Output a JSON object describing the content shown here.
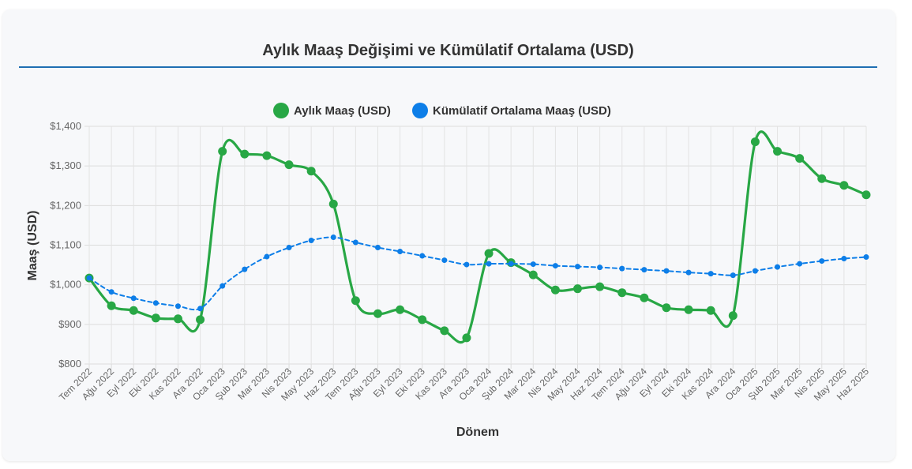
{
  "chart_data": {
    "type": "line",
    "title": "Aylık Maaş Değişimi ve Kümülatif Ortalama (USD)",
    "xlabel": "Dönem",
    "ylabel": "Maaş (USD)",
    "ylim": [
      800,
      1400
    ],
    "yticks": [
      800,
      900,
      1000,
      1100,
      1200,
      1300,
      1400
    ],
    "ytick_labels": [
      "$800",
      "$900",
      "$1,000",
      "$1,100",
      "$1,200",
      "$1,300",
      "$1,400"
    ],
    "grid": true,
    "legend_position": "top-center",
    "categories": [
      "Tem 2022",
      "Ağu 2022",
      "Eyl 2022",
      "Eki 2022",
      "Kas 2022",
      "Ara 2022",
      "Oca 2023",
      "Şub 2023",
      "Mar 2023",
      "Nis 2023",
      "May 2023",
      "Haz 2023",
      "Tem 2023",
      "Ağu 2023",
      "Eyl 2023",
      "Eki 2023",
      "Kas 2023",
      "Ara 2023",
      "Oca 2024",
      "Şub 2024",
      "Mar 2024",
      "Nis 2024",
      "May 2024",
      "Haz 2024",
      "Tem 2024",
      "Ağu 2024",
      "Eyl 2024",
      "Eki 2024",
      "Kas 2024",
      "Ara 2024",
      "Oca 2025",
      "Şub 2025",
      "Mar 2025",
      "Nis 2025",
      "May 2025",
      "Haz 2025"
    ],
    "series": [
      {
        "name": "Aylık Maaş (USD)",
        "color": "#28a745",
        "style": "solid",
        "values": [
          1017,
          947,
          935,
          916,
          914,
          912,
          1337,
          1330,
          1326,
          1303,
          1287,
          1204,
          960,
          927,
          937,
          912,
          884,
          866,
          1079,
          1056,
          1025,
          987,
          990,
          995,
          980,
          967,
          942,
          937,
          935,
          922,
          1361,
          1337,
          1319,
          1268,
          1251,
          1227
        ]
      },
      {
        "name": "Kümülatif Ortalama Maaş (USD)",
        "color": "#0d7ee8",
        "style": "dashed",
        "values": [
          1017,
          982,
          966,
          954,
          946,
          940,
          997,
          1039,
          1071,
          1094,
          1112,
          1120,
          1107,
          1094,
          1084,
          1073,
          1062,
          1051,
          1053,
          1053,
          1052,
          1048,
          1046,
          1044,
          1041,
          1038,
          1035,
          1031,
          1028,
          1024,
          1035,
          1045,
          1053,
          1060,
          1066,
          1070
        ]
      }
    ]
  }
}
